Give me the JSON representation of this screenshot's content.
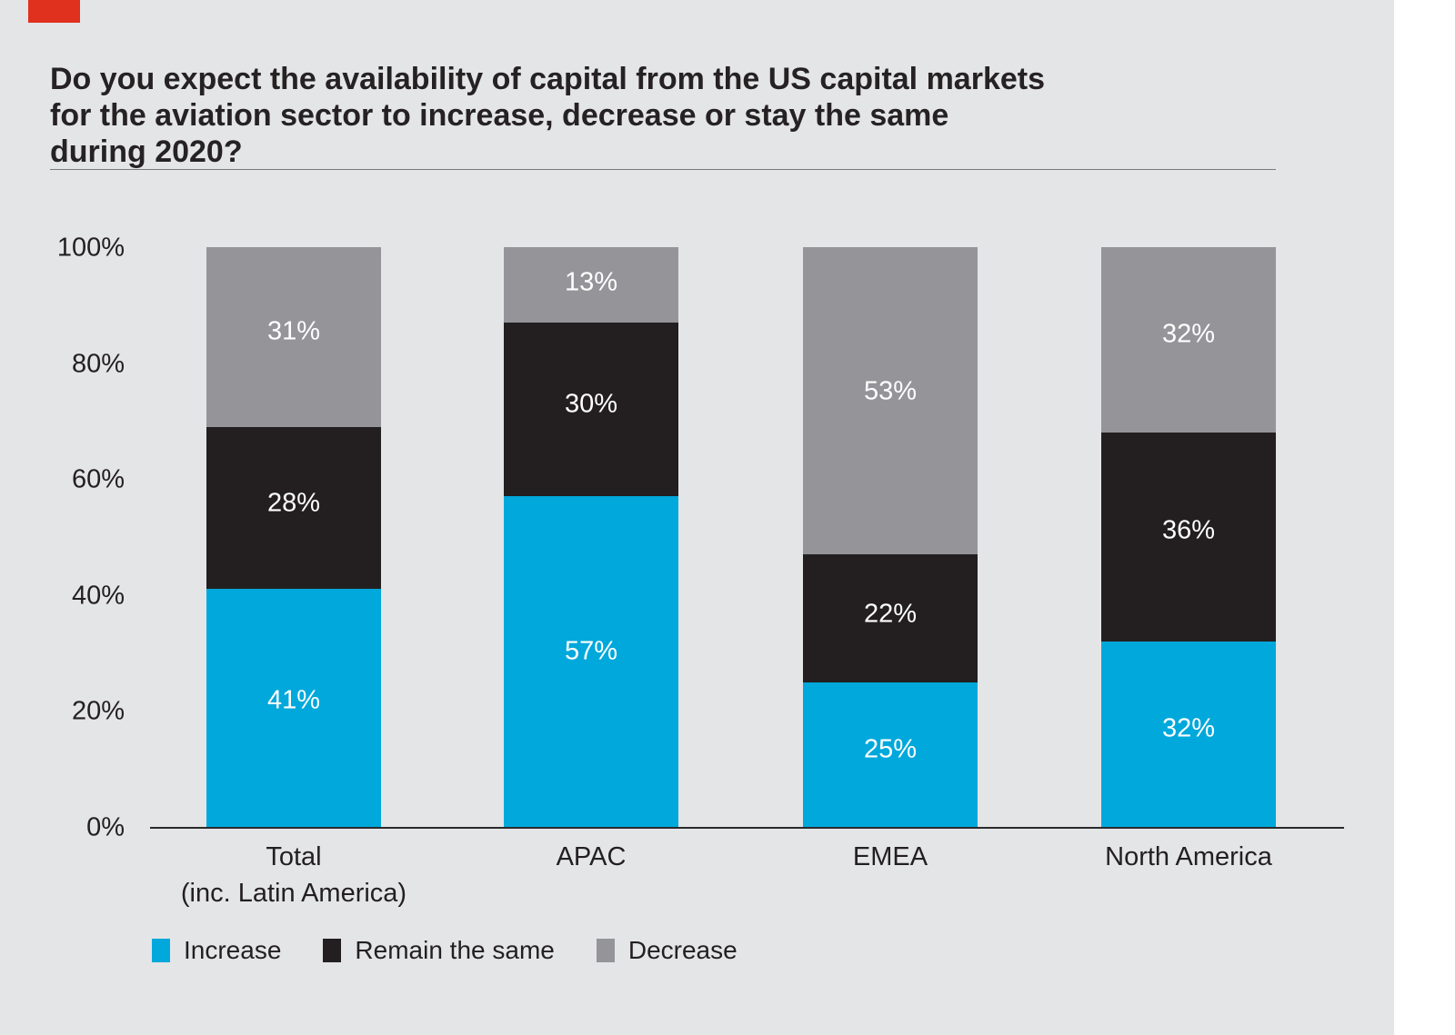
{
  "page": {
    "background_color": "#ffffff",
    "panel_color": "#e4e5e7",
    "brand_mark_color": "#e0301e",
    "text_color": "#231f20"
  },
  "title": "Do you expect the availability of capital from the US capital markets\nfor the aviation sector to increase, decrease or stay the same\nduring 2020?",
  "chart_data": {
    "type": "bar",
    "stacked": true,
    "title": "Do you expect the availability of capital from the US capital markets for the aviation sector to increase, decrease or stay the same during 2020?",
    "categories": [
      "Total (inc. Latin America)",
      "APAC",
      "EMEA",
      "North America"
    ],
    "category_display_lines": [
      [
        "Total",
        "(inc. Latin America)"
      ],
      [
        "APAC"
      ],
      [
        "EMEA"
      ],
      [
        "North America"
      ]
    ],
    "series": [
      {
        "name": "Increase",
        "color": "#00a8db",
        "values": [
          41,
          57,
          25,
          32
        ]
      },
      {
        "name": "Remain the same",
        "color": "#231f20",
        "values": [
          28,
          30,
          22,
          36
        ]
      },
      {
        "name": "Decrease",
        "color": "#949499",
        "values": [
          31,
          13,
          53,
          32
        ]
      }
    ],
    "value_label_suffix": "%",
    "value_label_color": "#ffffff",
    "xlabel": "",
    "ylabel": "",
    "ylim": [
      0,
      100
    ],
    "y_ticks": [
      {
        "label": "0%",
        "value": 0
      },
      {
        "label": "20%",
        "value": 20
      },
      {
        "label": "40%",
        "value": 40
      },
      {
        "label": "60%",
        "value": 60
      },
      {
        "label": "80%",
        "value": 80
      },
      {
        "label": "100%",
        "value": 100
      }
    ],
    "grid": false,
    "legend_position": "bottom-left"
  }
}
